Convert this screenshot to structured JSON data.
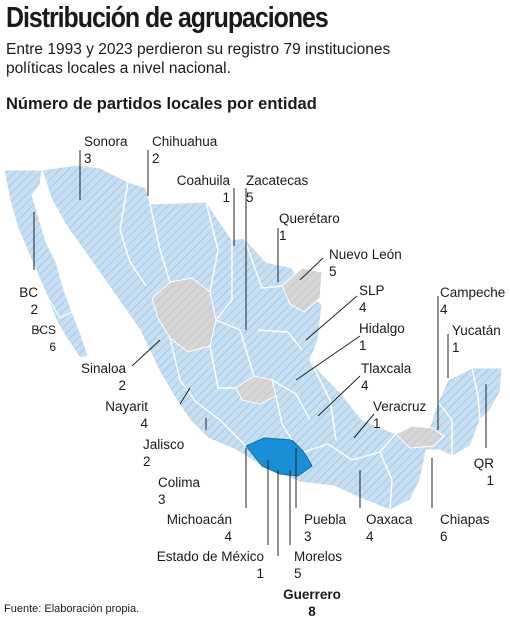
{
  "title": "Distribución de agrupaciones",
  "subtitle": "Entre 1993 y 2023 perdieron su registro 79 instituciones políticas locales a nivel nacional.",
  "map_title": "Número de partidos locales por entidad",
  "source": "Fuente: Elaboración propia.",
  "colors": {
    "land": "#c7dff2",
    "hatch": "#9fc3e4",
    "grey": "#d3d3d3",
    "highlight": "#1a8fd6",
    "leader": "#222222"
  },
  "states": [
    {
      "name": "Sonora",
      "count": "3"
    },
    {
      "name": "Chihuahua",
      "count": "2"
    },
    {
      "name": "Coahuila",
      "count": "1"
    },
    {
      "name": "Zacatecas",
      "count": "5"
    },
    {
      "name": "Querétaro",
      "count": "1"
    },
    {
      "name": "Nuevo León",
      "count": "5"
    },
    {
      "name": "BC",
      "count": "2"
    },
    {
      "name": "BCS",
      "count": "6"
    },
    {
      "name": "SLP",
      "count": "4"
    },
    {
      "name": "Campeche",
      "count": "4"
    },
    {
      "name": "Hidalgo",
      "count": "1"
    },
    {
      "name": "Yucatán",
      "count": "1"
    },
    {
      "name": "Sinaloa",
      "count": "2"
    },
    {
      "name": "Tlaxcala",
      "count": "4"
    },
    {
      "name": "Nayarit",
      "count": "4"
    },
    {
      "name": "Veracruz",
      "count": "1"
    },
    {
      "name": "Jalisco",
      "count": "2"
    },
    {
      "name": "QR",
      "count": "1"
    },
    {
      "name": "Colima",
      "count": "3"
    },
    {
      "name": "Michoacán",
      "count": "4"
    },
    {
      "name": "Puebla",
      "count": "3"
    },
    {
      "name": "Oaxaca",
      "count": "4"
    },
    {
      "name": "Chiapas",
      "count": "6"
    },
    {
      "name": "Estado de México",
      "count": "1"
    },
    {
      "name": "Morelos",
      "count": "5"
    },
    {
      "name": "Guerrero",
      "count": "8"
    }
  ]
}
